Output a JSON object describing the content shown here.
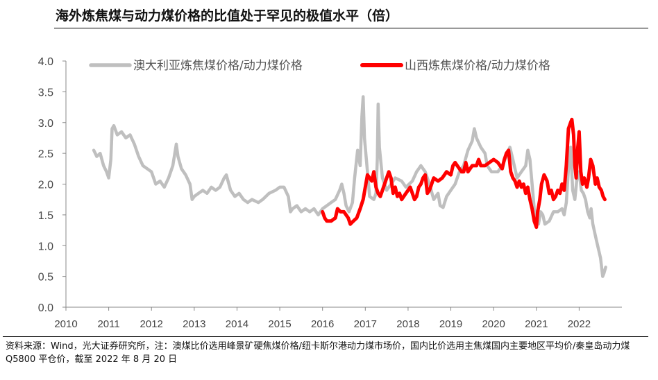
{
  "title": "海外炼焦煤与动力煤价格的比值处于罕见的极值水平（倍）",
  "note": "资料来源：Wind，光大证券研究所，注：澳煤比价选用峰景矿硬焦煤价格/纽卡斯尔港动力煤市场价，国内比价选用主焦煤国内主要地区平均价/秦皇岛动力煤 Q5800 平仓价，截至 2022 年 8 月 20 日",
  "chart_data": {
    "type": "line",
    "title": "海外炼焦煤与动力煤价格的比值处于罕见的极值水平（倍）",
    "xlabel": "",
    "ylabel": "",
    "ylim": [
      0,
      4
    ],
    "xlim": [
      2010,
      2023
    ],
    "y_ticks": [
      "0.0",
      "0.5",
      "1.0",
      "1.5",
      "2.0",
      "2.5",
      "3.0",
      "3.5",
      "4.0"
    ],
    "x_ticks": [
      "2010",
      "2011",
      "2012",
      "2013",
      "2014",
      "2015",
      "2016",
      "2017",
      "2018",
      "2019",
      "2020",
      "2021",
      "2022"
    ],
    "grid": false,
    "legend_position": "top",
    "series": [
      {
        "name": "澳大利亚炼焦煤价格/动力煤价格",
        "color": "#bfbfbf",
        "points": [
          [
            2010.65,
            2.55
          ],
          [
            2010.72,
            2.45
          ],
          [
            2010.8,
            2.5
          ],
          [
            2010.88,
            2.3
          ],
          [
            2010.95,
            2.2
          ],
          [
            2011.0,
            2.1
          ],
          [
            2011.05,
            2.4
          ],
          [
            2011.08,
            2.9
          ],
          [
            2011.12,
            2.95
          ],
          [
            2011.2,
            2.8
          ],
          [
            2011.3,
            2.85
          ],
          [
            2011.4,
            2.75
          ],
          [
            2011.5,
            2.8
          ],
          [
            2011.6,
            2.65
          ],
          [
            2011.7,
            2.45
          ],
          [
            2011.8,
            2.3
          ],
          [
            2011.9,
            2.25
          ],
          [
            2012.0,
            2.2
          ],
          [
            2012.1,
            2.0
          ],
          [
            2012.2,
            2.05
          ],
          [
            2012.3,
            1.95
          ],
          [
            2012.4,
            2.1
          ],
          [
            2012.5,
            2.3
          ],
          [
            2012.58,
            2.65
          ],
          [
            2012.62,
            2.45
          ],
          [
            2012.7,
            2.25
          ],
          [
            2012.8,
            2.15
          ],
          [
            2012.9,
            2.0
          ],
          [
            2012.95,
            1.75
          ],
          [
            2013.0,
            1.8
          ],
          [
            2013.1,
            1.85
          ],
          [
            2013.2,
            1.9
          ],
          [
            2013.3,
            1.85
          ],
          [
            2013.4,
            1.95
          ],
          [
            2013.5,
            1.9
          ],
          [
            2013.6,
            1.95
          ],
          [
            2013.7,
            2.1
          ],
          [
            2013.75,
            2.15
          ],
          [
            2013.85,
            1.9
          ],
          [
            2013.95,
            1.8
          ],
          [
            2014.05,
            1.85
          ],
          [
            2014.15,
            1.75
          ],
          [
            2014.25,
            1.7
          ],
          [
            2014.35,
            1.75
          ],
          [
            2014.5,
            1.7
          ],
          [
            2014.6,
            1.75
          ],
          [
            2014.75,
            1.85
          ],
          [
            2014.9,
            1.9
          ],
          [
            2015.0,
            1.95
          ],
          [
            2015.1,
            1.95
          ],
          [
            2015.2,
            1.8
          ],
          [
            2015.25,
            1.55
          ],
          [
            2015.3,
            1.6
          ],
          [
            2015.4,
            1.65
          ],
          [
            2015.5,
            1.55
          ],
          [
            2015.6,
            1.6
          ],
          [
            2015.7,
            1.55
          ],
          [
            2015.8,
            1.6
          ],
          [
            2015.9,
            1.5
          ],
          [
            2016.0,
            1.6
          ],
          [
            2016.1,
            1.65
          ],
          [
            2016.2,
            1.7
          ],
          [
            2016.3,
            1.75
          ],
          [
            2016.4,
            1.9
          ],
          [
            2016.45,
            2.0
          ],
          [
            2016.5,
            1.85
          ],
          [
            2016.55,
            1.65
          ],
          [
            2016.62,
            1.55
          ],
          [
            2016.7,
            1.7
          ],
          [
            2016.75,
            2.1
          ],
          [
            2016.82,
            2.55
          ],
          [
            2016.88,
            2.3
          ],
          [
            2016.92,
            3.1
          ],
          [
            2016.95,
            3.42
          ],
          [
            2016.98,
            2.75
          ],
          [
            2017.05,
            2.2
          ],
          [
            2017.1,
            1.8
          ],
          [
            2017.2,
            1.75
          ],
          [
            2017.25,
            1.85
          ],
          [
            2017.28,
            2.4
          ],
          [
            2017.3,
            3.3
          ],
          [
            2017.33,
            2.6
          ],
          [
            2017.4,
            2.1
          ],
          [
            2017.5,
            1.9
          ],
          [
            2017.6,
            2.0
          ],
          [
            2017.7,
            2.1
          ],
          [
            2017.85,
            2.05
          ],
          [
            2017.95,
            1.95
          ],
          [
            2018.1,
            2.05
          ],
          [
            2018.2,
            2.2
          ],
          [
            2018.3,
            2.3
          ],
          [
            2018.4,
            2.2
          ],
          [
            2018.5,
            2.0
          ],
          [
            2018.6,
            1.75
          ],
          [
            2018.7,
            1.85
          ],
          [
            2018.75,
            1.65
          ],
          [
            2018.82,
            1.62
          ],
          [
            2018.9,
            1.8
          ],
          [
            2019.0,
            1.9
          ],
          [
            2019.1,
            2.0
          ],
          [
            2019.2,
            2.2
          ],
          [
            2019.3,
            2.3
          ],
          [
            2019.4,
            2.55
          ],
          [
            2019.5,
            2.7
          ],
          [
            2019.55,
            2.9
          ],
          [
            2019.6,
            2.75
          ],
          [
            2019.7,
            2.6
          ],
          [
            2019.8,
            2.5
          ],
          [
            2019.85,
            2.3
          ],
          [
            2019.95,
            2.2
          ],
          [
            2020.1,
            2.2
          ],
          [
            2020.2,
            2.3
          ],
          [
            2020.3,
            2.45
          ],
          [
            2020.38,
            2.6
          ],
          [
            2020.45,
            2.4
          ],
          [
            2020.55,
            2.1
          ],
          [
            2020.65,
            2.2
          ],
          [
            2020.75,
            2.3
          ],
          [
            2020.8,
            2.55
          ],
          [
            2020.85,
            2.4
          ],
          [
            2020.9,
            2.0
          ],
          [
            2020.95,
            1.6
          ],
          [
            2021.0,
            1.4
          ],
          [
            2021.05,
            1.35
          ],
          [
            2021.1,
            1.55
          ],
          [
            2021.15,
            1.5
          ],
          [
            2021.2,
            1.35
          ],
          [
            2021.3,
            1.4
          ],
          [
            2021.4,
            1.55
          ],
          [
            2021.5,
            1.55
          ],
          [
            2021.6,
            1.6
          ],
          [
            2021.65,
            1.5
          ],
          [
            2021.7,
            1.7
          ],
          [
            2021.75,
            2.25
          ],
          [
            2021.8,
            2.6
          ],
          [
            2021.85,
            1.9
          ],
          [
            2021.9,
            1.75
          ],
          [
            2021.95,
            2.1
          ],
          [
            2022.0,
            2.2
          ],
          [
            2022.05,
            1.9
          ],
          [
            2022.1,
            1.85
          ],
          [
            2022.15,
            1.75
          ],
          [
            2022.2,
            1.55
          ],
          [
            2022.25,
            1.45
          ],
          [
            2022.28,
            1.6
          ],
          [
            2022.32,
            1.35
          ],
          [
            2022.4,
            1.1
          ],
          [
            2022.45,
            0.95
          ],
          [
            2022.5,
            0.8
          ],
          [
            2022.55,
            0.5
          ],
          [
            2022.58,
            0.55
          ],
          [
            2022.62,
            0.65
          ]
        ]
      },
      {
        "name": "山西炼焦煤价格/动力煤价格",
        "color": "#ff0000",
        "points": [
          [
            2016.0,
            1.55
          ],
          [
            2016.05,
            1.45
          ],
          [
            2016.1,
            1.4
          ],
          [
            2016.2,
            1.4
          ],
          [
            2016.3,
            1.45
          ],
          [
            2016.35,
            1.6
          ],
          [
            2016.42,
            1.55
          ],
          [
            2016.5,
            1.55
          ],
          [
            2016.6,
            1.45
          ],
          [
            2016.65,
            1.35
          ],
          [
            2016.72,
            1.4
          ],
          [
            2016.8,
            1.45
          ],
          [
            2016.88,
            1.6
          ],
          [
            2016.95,
            1.75
          ],
          [
            2017.0,
            1.95
          ],
          [
            2017.05,
            2.15
          ],
          [
            2017.1,
            2.1
          ],
          [
            2017.15,
            2.05
          ],
          [
            2017.2,
            2.2
          ],
          [
            2017.25,
            1.95
          ],
          [
            2017.3,
            1.85
          ],
          [
            2017.35,
            1.8
          ],
          [
            2017.4,
            1.9
          ],
          [
            2017.5,
            2.1
          ],
          [
            2017.55,
            2.2
          ],
          [
            2017.6,
            2.1
          ],
          [
            2017.65,
            1.85
          ],
          [
            2017.7,
            1.95
          ],
          [
            2017.75,
            1.8
          ],
          [
            2017.8,
            1.85
          ],
          [
            2017.85,
            1.75
          ],
          [
            2017.95,
            1.85
          ],
          [
            2018.05,
            1.95
          ],
          [
            2018.1,
            1.85
          ],
          [
            2018.15,
            1.75
          ],
          [
            2018.2,
            1.8
          ],
          [
            2018.25,
            1.95
          ],
          [
            2018.3,
            2.0
          ],
          [
            2018.35,
            2.1
          ],
          [
            2018.4,
            2.15
          ],
          [
            2018.45,
            1.85
          ],
          [
            2018.5,
            1.9
          ],
          [
            2018.55,
            2.0
          ],
          [
            2018.6,
            2.1
          ],
          [
            2018.7,
            2.05
          ],
          [
            2018.8,
            2.1
          ],
          [
            2018.9,
            2.2
          ],
          [
            2019.0,
            2.15
          ],
          [
            2019.05,
            2.3
          ],
          [
            2019.1,
            2.35
          ],
          [
            2019.15,
            2.3
          ],
          [
            2019.2,
            2.25
          ],
          [
            2019.25,
            2.2
          ],
          [
            2019.3,
            2.2
          ],
          [
            2019.35,
            2.35
          ],
          [
            2019.4,
            2.2
          ],
          [
            2019.5,
            2.3
          ],
          [
            2019.6,
            2.3
          ],
          [
            2019.65,
            2.4
          ],
          [
            2019.7,
            2.3
          ],
          [
            2019.8,
            2.3
          ],
          [
            2019.9,
            2.35
          ],
          [
            2020.0,
            2.4
          ],
          [
            2020.1,
            2.35
          ],
          [
            2020.2,
            2.25
          ],
          [
            2020.25,
            2.4
          ],
          [
            2020.3,
            2.5
          ],
          [
            2020.35,
            2.55
          ],
          [
            2020.4,
            2.2
          ],
          [
            2020.45,
            2.1
          ],
          [
            2020.5,
            2.05
          ],
          [
            2020.55,
            1.95
          ],
          [
            2020.6,
            2.05
          ],
          [
            2020.65,
            1.95
          ],
          [
            2020.7,
            2.0
          ],
          [
            2020.75,
            1.85
          ],
          [
            2020.8,
            1.95
          ],
          [
            2020.85,
            1.75
          ],
          [
            2020.9,
            1.6
          ],
          [
            2020.95,
            1.4
          ],
          [
            2021.0,
            1.3
          ],
          [
            2021.03,
            1.55
          ],
          [
            2021.08,
            1.75
          ],
          [
            2021.12,
            2.0
          ],
          [
            2021.18,
            2.15
          ],
          [
            2021.25,
            2.05
          ],
          [
            2021.3,
            1.85
          ],
          [
            2021.35,
            1.9
          ],
          [
            2021.4,
            1.75
          ],
          [
            2021.45,
            1.8
          ],
          [
            2021.5,
            1.9
          ],
          [
            2021.55,
            1.85
          ],
          [
            2021.6,
            2.0
          ],
          [
            2021.65,
            1.9
          ],
          [
            2021.7,
            2.3
          ],
          [
            2021.75,
            2.9
          ],
          [
            2021.8,
            3.0
          ],
          [
            2021.83,
            3.05
          ],
          [
            2021.87,
            2.8
          ],
          [
            2021.9,
            2.3
          ],
          [
            2021.93,
            2.1
          ],
          [
            2021.97,
            2.6
          ],
          [
            2022.0,
            2.85
          ],
          [
            2022.04,
            2.2
          ],
          [
            2022.08,
            2.0
          ],
          [
            2022.12,
            2.1
          ],
          [
            2022.18,
            1.95
          ],
          [
            2022.22,
            2.1
          ],
          [
            2022.27,
            2.4
          ],
          [
            2022.32,
            2.3
          ],
          [
            2022.38,
            2.0
          ],
          [
            2022.42,
            2.1
          ],
          [
            2022.47,
            1.95
          ],
          [
            2022.52,
            1.9
          ],
          [
            2022.56,
            1.8
          ],
          [
            2022.6,
            1.75
          ]
        ]
      }
    ]
  }
}
